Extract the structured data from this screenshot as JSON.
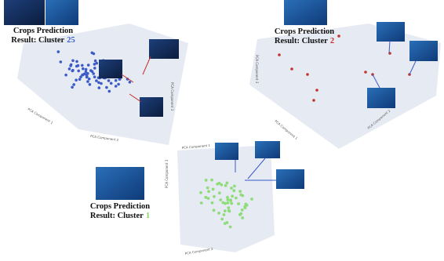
{
  "panels": [
    {
      "caption_title": "Crops Prediction",
      "caption_prefix": "Result: Cluster",
      "cluster": 25,
      "axes": [
        "PCA Component 1",
        "PCA Component 2",
        "PCA Component 3"
      ]
    },
    {
      "caption_title": "Crops Prediction",
      "caption_prefix": "Result: Cluster",
      "cluster": 2,
      "axes": [
        "PCA Component 1",
        "PCA Component 2",
        "PCA Component 3"
      ]
    },
    {
      "caption_title": "Crops Prediction",
      "caption_prefix": "Result: Cluster",
      "cluster": 1,
      "axes": [
        "PCA Component 1",
        "PCA Component 2",
        "PCA Component 3"
      ]
    }
  ]
}
